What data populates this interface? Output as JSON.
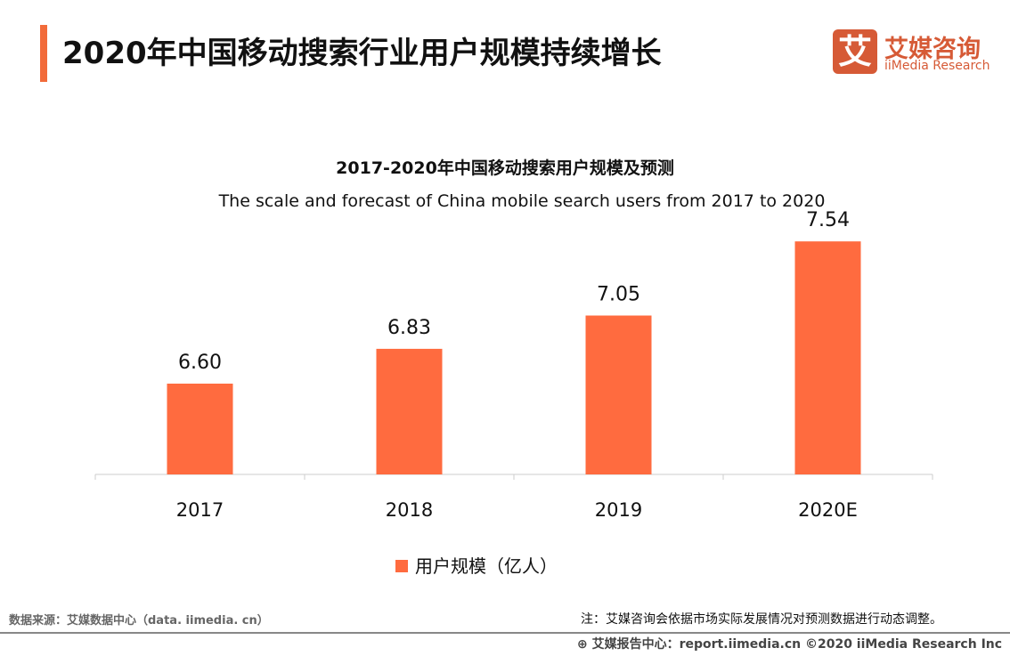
{
  "header": {
    "title": "2020年中国移动搜索行业用户规模持续增长",
    "logo_cn": "艾媒咨询",
    "logo_en": "iiMedia Research",
    "logo_mark": "艾"
  },
  "chart_data": {
    "type": "bar",
    "title": "2017-2020年中国移动搜索用户规模及预测",
    "subtitle": "The scale and forecast of China mobile search users from 2017 to 2020",
    "categories": [
      "2017",
      "2018",
      "2019",
      "2020E"
    ],
    "series": [
      {
        "name": "用户规模（亿人）",
        "values": [
          6.6,
          6.83,
          7.05,
          7.54
        ],
        "labels": [
          "6.60",
          "6.83",
          "7.05",
          "7.54"
        ],
        "color": "#ff6b3f"
      }
    ],
    "ylim": [
      6.0,
      8.0
    ],
    "grid": false,
    "legend": "bottom"
  },
  "footer": {
    "source": "数据来源：艾媒数据中心（data. iimedia. cn）",
    "note": "注：艾媒咨询会依据市场实际发展情况对预测数据进行动态调整。",
    "credit": "艾媒报告中心：report.iimedia.cn   ©2020  iiMedia Research  Inc"
  }
}
